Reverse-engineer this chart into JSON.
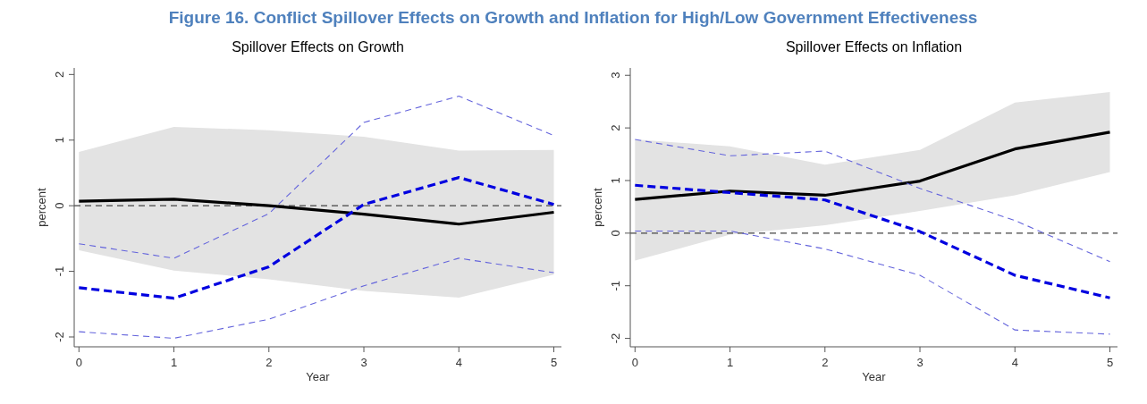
{
  "chart_data": [
    {
      "type": "line",
      "title": "Spillover Effects on Growth",
      "xlabel": "Year",
      "ylabel": "percent",
      "x": [
        0,
        1,
        2,
        3,
        4,
        5
      ],
      "xlim": [
        -0.05,
        5.08
      ],
      "xticks": [
        0,
        1,
        2,
        3,
        4,
        5
      ],
      "ylim": [
        -2.15,
        2.1
      ],
      "yticks": [
        -2,
        -1,
        0,
        1,
        2
      ],
      "series": [
        {
          "color": "#000000",
          "line_style": "solid",
          "values": [
            0.07,
            0.1,
            0.0,
            -0.13,
            -0.28,
            -0.1
          ],
          "lower": [
            -0.68,
            -0.99,
            -1.12,
            -1.3,
            -1.4,
            -1.05
          ],
          "upper": [
            0.82,
            1.2,
            1.15,
            1.05,
            0.84,
            0.85
          ]
        },
        {
          "color": "#0000e0",
          "line_style": "dashed",
          "values": [
            -1.25,
            -1.41,
            -0.93,
            0.02,
            0.43,
            0.02
          ]
        },
        {
          "color": "#6464dc",
          "line_style": "dashed",
          "values": [
            -0.58,
            -0.8,
            -0.12,
            1.27,
            1.67,
            1.07
          ]
        },
        {
          "color": "#6464dc",
          "line_style": "dashed",
          "values": [
            -1.92,
            -2.02,
            -1.73,
            -1.22,
            -0.8,
            -1.02
          ]
        }
      ],
      "ref_lines": [
        {
          "axis": "y",
          "value": 0,
          "color": "#444444",
          "line_style": "dashed"
        }
      ],
      "annotations": [
        "Figure 16. Conflict Spillover Effects on Growth and Inflation for High/Low Government Effectiveness"
      ]
    },
    {
      "type": "line",
      "title": "Spillover Effects on Inflation",
      "xlabel": "Year",
      "ylabel": "percent",
      "x": [
        0,
        1,
        2,
        3,
        4,
        5
      ],
      "xlim": [
        -0.05,
        5.08
      ],
      "xticks": [
        0,
        1,
        2,
        3,
        4,
        5
      ],
      "ylim": [
        -2.16,
        3.14
      ],
      "yticks": [
        -2,
        -1,
        0,
        1,
        2,
        3
      ],
      "series": [
        {
          "color": "#000000",
          "line_style": "solid",
          "values": [
            0.64,
            0.8,
            0.72,
            0.99,
            1.6,
            1.92
          ],
          "lower": [
            -0.52,
            -0.03,
            0.15,
            0.42,
            0.72,
            1.16
          ],
          "upper": [
            1.78,
            1.65,
            1.3,
            1.58,
            2.48,
            2.68
          ]
        },
        {
          "color": "#0000e0",
          "line_style": "dashed",
          "values": [
            0.91,
            0.77,
            0.63,
            0.03,
            -0.8,
            -1.23
          ]
        },
        {
          "color": "#6464dc",
          "line_style": "dashed",
          "values": [
            1.78,
            1.47,
            1.56,
            0.85,
            0.24,
            -0.54
          ]
        },
        {
          "color": "#6464dc",
          "line_style": "dashed",
          "values": [
            0.04,
            0.04,
            -0.3,
            -0.8,
            -1.84,
            -1.92
          ]
        }
      ],
      "ref_lines": [
        {
          "axis": "y",
          "value": 0,
          "color": "#444444",
          "line_style": "dashed"
        }
      ]
    }
  ]
}
